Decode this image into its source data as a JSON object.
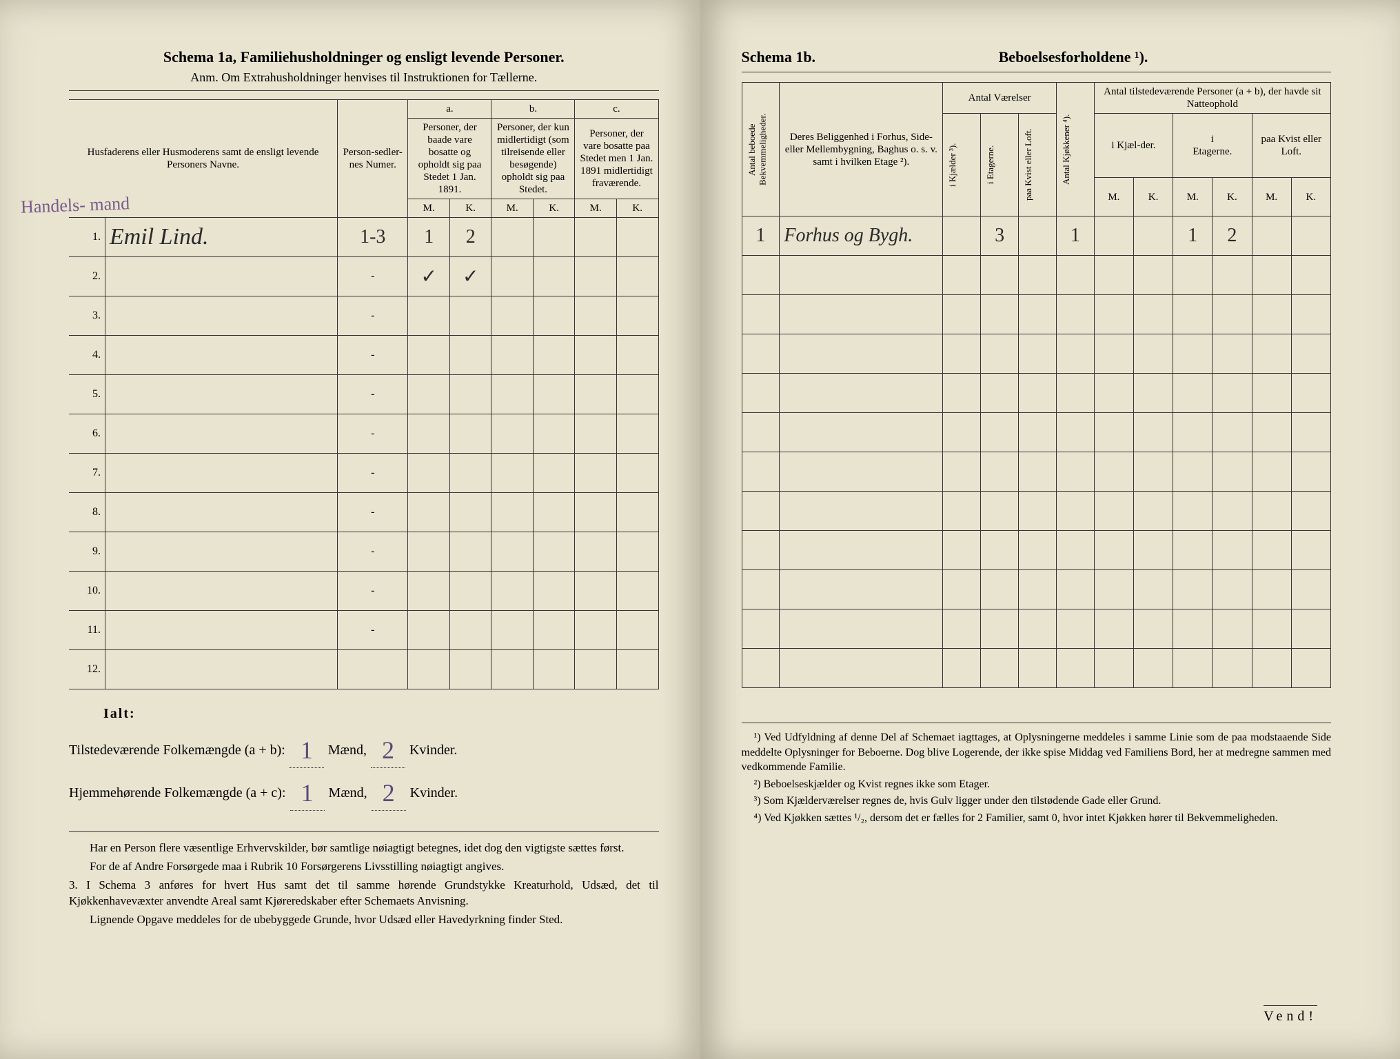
{
  "left": {
    "title": "Schema 1a, Familiehusholdninger og ensligt levende Personer.",
    "subtitle": "Anm. Om Extrahusholdninger henvises til Instruktionen for Tællerne.",
    "headers": {
      "names": "Husfaderens eller Husmoderens samt de ensligt levende Personers Navne.",
      "personnum": "Person-sedler-nes Numer.",
      "col_a_label": "a.",
      "col_a": "Personer, der baade vare bosatte og opholdt sig paa Stedet 1 Jan. 1891.",
      "col_b_label": "b.",
      "col_b": "Personer, der kun midlertidigt (som tilreisende eller besøgende) opholdt sig paa Stedet.",
      "col_c_label": "c.",
      "col_c": "Personer, der vare bosatte paa Stedet men 1 Jan. 1891 midlertidigt fraværende.",
      "M": "M.",
      "K": "K."
    },
    "margin_note": "Handels-\nmand",
    "rows": [
      {
        "n": "1.",
        "name": "Emil Lind.",
        "person": "1-3",
        "aM": "1",
        "aK": "2",
        "bM": "",
        "bK": "",
        "cM": "",
        "cK": ""
      },
      {
        "n": "2.",
        "name": "",
        "person": "-",
        "aM": "✓",
        "aK": "✓",
        "bM": "",
        "bK": "",
        "cM": "",
        "cK": ""
      },
      {
        "n": "3.",
        "name": "",
        "person": "-",
        "aM": "",
        "aK": "",
        "bM": "",
        "bK": "",
        "cM": "",
        "cK": ""
      },
      {
        "n": "4.",
        "name": "",
        "person": "-",
        "aM": "",
        "aK": "",
        "bM": "",
        "bK": "",
        "cM": "",
        "cK": ""
      },
      {
        "n": "5.",
        "name": "",
        "person": "-",
        "aM": "",
        "aK": "",
        "bM": "",
        "bK": "",
        "cM": "",
        "cK": ""
      },
      {
        "n": "6.",
        "name": "",
        "person": "-",
        "aM": "",
        "aK": "",
        "bM": "",
        "bK": "",
        "cM": "",
        "cK": ""
      },
      {
        "n": "7.",
        "name": "",
        "person": "-",
        "aM": "",
        "aK": "",
        "bM": "",
        "bK": "",
        "cM": "",
        "cK": ""
      },
      {
        "n": "8.",
        "name": "",
        "person": "-",
        "aM": "",
        "aK": "",
        "bM": "",
        "bK": "",
        "cM": "",
        "cK": ""
      },
      {
        "n": "9.",
        "name": "",
        "person": "-",
        "aM": "",
        "aK": "",
        "bM": "",
        "bK": "",
        "cM": "",
        "cK": ""
      },
      {
        "n": "10.",
        "name": "",
        "person": "-",
        "aM": "",
        "aK": "",
        "bM": "",
        "bK": "",
        "cM": "",
        "cK": ""
      },
      {
        "n": "11.",
        "name": "",
        "person": "-",
        "aM": "",
        "aK": "",
        "bM": "",
        "bK": "",
        "cM": "",
        "cK": ""
      },
      {
        "n": "12.",
        "name": "",
        "person": "",
        "aM": "",
        "aK": "",
        "bM": "",
        "bK": "",
        "cM": "",
        "cK": ""
      }
    ],
    "totals": {
      "ialt": "Ialt:",
      "line1_label": "Tilstedeværende Folkemængde (a + b):",
      "line2_label": "Hjemmehørende Folkemængde (a + c):",
      "maend": "Mænd,",
      "kvinder": "Kvinder.",
      "line1_m": "1",
      "line1_k": "2",
      "line2_m": "1",
      "line2_k": "2"
    },
    "footnotes": {
      "p1": "Har en Person flere væsentlige Erhvervskilder, bør samtlige nøiagtigt betegnes, idet dog den vigtigste sættes først.",
      "p2": "For de af Andre Forsørgede maa i Rubrik 10 Forsørgerens Livsstilling nøiagtigt angives.",
      "p3": "3. I Schema 3 anføres for hvert Hus samt det til samme hørende Grundstykke Kreaturhold, Udsæd, det til Kjøkkenhavevæxter anvendte Areal samt Kjøreredskaber efter Schemaets Anvisning.",
      "p4": "Lignende Opgave meddeles for de ubebyggede Grunde, hvor Udsæd eller Havedyrkning finder Sted."
    }
  },
  "right": {
    "title_left": "Schema 1b.",
    "title_right": "Beboelsesforholdene ¹).",
    "headers": {
      "antal_bekv": "Antal beboede Bekvemmeligheder.",
      "beliggenhed": "Deres Beliggenhed i Forhus, Side- eller Mellembygning, Baghus o. s. v. samt i hvilken Etage ²).",
      "antal_vaer": "Antal Værelser",
      "kjokkener": "Antal Kjøkkener ⁴).",
      "i_kjaelder": "i Kjælder ³).",
      "i_etagerne": "i Etagerne.",
      "paa_kvist": "paa Kvist eller Loft.",
      "antal_pers": "Antal tilstedeværende Personer (a + b), der havde sit Natteophold",
      "i_kjael_der": "i Kjæl-der.",
      "i_etagerne2": "i\nEtagerne.",
      "paa_kvist2": "paa Kvist eller Loft.",
      "M": "M.",
      "K": "K."
    },
    "rows": [
      {
        "n": "1",
        "loc": "Forhus og Bygh.",
        "kj": "",
        "et": "3",
        "kv": "",
        "kjok": "1",
        "km": "",
        "kk": "",
        "em": "1",
        "ek": "2",
        "lm": "",
        "lk": ""
      }
    ],
    "footnotes": {
      "f1": "¹) Ved Udfyldning af denne Del af Schemaet iagttages, at Oplysningerne meddeles i samme Linie som de paa modstaaende Side meddelte Oplysninger for Beboerne. Dog blive Logerende, der ikke spise Middag ved Familiens Bord, her at medregne sammen med vedkommende Familie.",
      "f2": "²) Beboelseskjælder og Kvist regnes ikke som Etager.",
      "f3": "³) Som Kjælderværelser regnes de, hvis Gulv ligger under den tilstødende Gade eller Grund.",
      "f4": "⁴) Ved Kjøkken sættes ¹/₂, dersom det er fælles for 2 Familier, samt 0, hvor intet Kjøkken hører til Bekvemmeligheden."
    },
    "vend": "Vend!"
  },
  "colors": {
    "paper": "#e8e4d0",
    "ink": "#2a2a2a",
    "pencil": "#7a5a8a"
  }
}
